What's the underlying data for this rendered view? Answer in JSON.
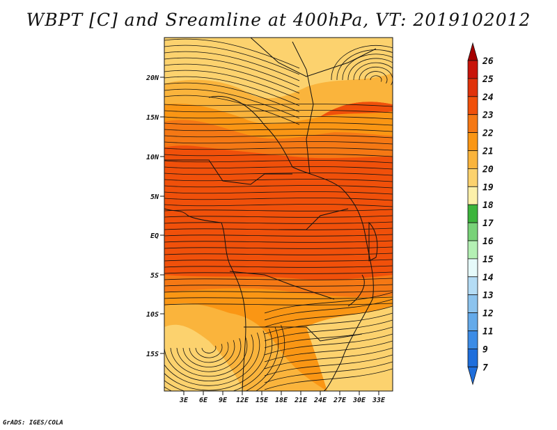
{
  "title": "WBPT [C] and Sreamline at 400hPa, VT: 2019102012",
  "credit": "GrADS: IGES/COLA",
  "map": {
    "lat_labels": [
      "20N",
      "15N",
      "10N",
      "5N",
      "EQ",
      "5S",
      "10S",
      "15S"
    ],
    "lon_labels": [
      "3E",
      "6E",
      "9E",
      "12E",
      "15E",
      "18E",
      "21E",
      "24E",
      "27E",
      "30E",
      "33E"
    ]
  },
  "colorbar": {
    "labels": [
      "26",
      "25",
      "24",
      "23",
      "22",
      "21",
      "20",
      "19",
      "18",
      "17",
      "16",
      "15",
      "14",
      "13",
      "12",
      "11",
      "9",
      "7"
    ],
    "colors": [
      "#a50000",
      "#c8140a",
      "#e0320a",
      "#f0500a",
      "#f57814",
      "#fa9614",
      "#fab43c",
      "#fcd26e",
      "#fcf0aa",
      "#3cb43c",
      "#78d278",
      "#b4f0b4",
      "#e6fafa",
      "#b4dcf5",
      "#8cc3ee",
      "#64aaea",
      "#3c8ce6",
      "#1e6edc"
    ]
  }
}
